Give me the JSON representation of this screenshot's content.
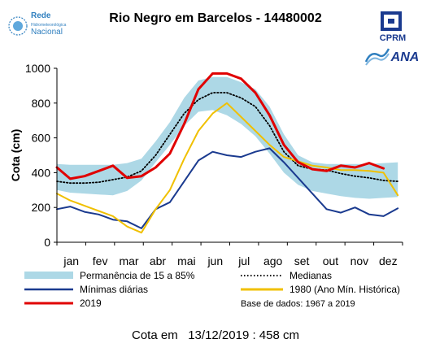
{
  "header": {
    "logo_left_lines": [
      "Rede",
      "Hidrometeorológica",
      "Nacional"
    ],
    "logo_cprm": "CPRM",
    "logo_ana": "ANA"
  },
  "chart_data": {
    "type": "line",
    "title": "Rio Negro em Barcelos - 14480002",
    "ylabel": "Cota (cm)",
    "xlabel": "",
    "ylim": [
      0,
      1000
    ],
    "yticks": [
      0,
      200,
      400,
      600,
      800,
      1000
    ],
    "months": [
      "jan",
      "fev",
      "mar",
      "abr",
      "mai",
      "jun",
      "jul",
      "ago",
      "set",
      "out",
      "nov",
      "dez"
    ],
    "grid": false,
    "legend_position": "bottom",
    "x_days": [
      1,
      15,
      30,
      45,
      60,
      75,
      90,
      105,
      120,
      135,
      150,
      165,
      180,
      195,
      210,
      225,
      240,
      255,
      270,
      285,
      300,
      315,
      330,
      345,
      360
    ],
    "band": {
      "name": "Permanência de 15 a 85%",
      "lower": [
        300,
        285,
        280,
        275,
        270,
        295,
        355,
        460,
        560,
        670,
        750,
        760,
        730,
        680,
        610,
        510,
        400,
        330,
        295,
        280,
        265,
        255,
        250,
        255,
        260
      ],
      "upper": [
        450,
        445,
        445,
        445,
        445,
        455,
        480,
        580,
        690,
        830,
        930,
        950,
        950,
        920,
        880,
        780,
        620,
        500,
        460,
        450,
        450,
        450,
        450,
        455,
        460
      ]
    },
    "series": [
      {
        "name": "Medianas",
        "color": "#000000",
        "style": "dotted",
        "values": [
          350,
          340,
          340,
          345,
          360,
          375,
          410,
          500,
          620,
          740,
          820,
          860,
          860,
          830,
          780,
          670,
          520,
          440,
          420,
          415,
          395,
          380,
          370,
          355,
          350
        ]
      },
      {
        "name": "Mínimas diárias",
        "color": "#1a3a8f",
        "style": "solid",
        "values": [
          190,
          205,
          175,
          160,
          130,
          120,
          80,
          190,
          230,
          350,
          470,
          520,
          500,
          490,
          520,
          540,
          460,
          370,
          280,
          190,
          170,
          200,
          160,
          150,
          195
        ]
      },
      {
        "name": "1980 (Ano Mín. Histórica)",
        "color": "#f0c000",
        "style": "solid",
        "values": [
          280,
          240,
          210,
          180,
          150,
          90,
          55,
          190,
          300,
          480,
          640,
          740,
          800,
          720,
          640,
          560,
          490,
          465,
          440,
          430,
          415,
          415,
          410,
          400,
          270
        ]
      },
      {
        "name": "2019",
        "color": "#e00000",
        "style": "solid",
        "values": [
          430,
          365,
          380,
          410,
          440,
          370,
          380,
          430,
          510,
          680,
          880,
          970,
          970,
          940,
          860,
          730,
          560,
          460,
          420,
          410,
          440,
          430,
          455,
          425,
          null
        ]
      }
    ],
    "annotation": "Base de dados: 1967 a 2019"
  },
  "footer": {
    "label": "Cota em",
    "date": "13/12/2019",
    "value": ": 458 cm"
  }
}
